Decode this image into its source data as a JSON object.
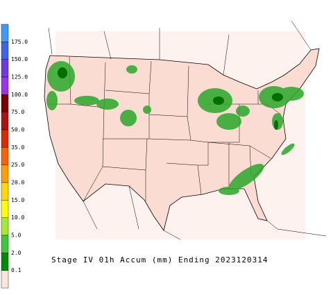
{
  "legend": {
    "labels": [
      "175.0",
      "150.0",
      "125.0",
      "100.0",
      "75.0",
      "50.0",
      "35.0",
      "25.0",
      "20.0",
      "15.0",
      "10.0",
      "5.0",
      "2.0",
      "0.1"
    ],
    "colors": [
      "#3d9bff",
      "#3c64e6",
      "#6e3ce0",
      "#9a32f0",
      "#7a0000",
      "#b01010",
      "#e02800",
      "#ff6000",
      "#ffa000",
      "#ffd800",
      "#ffff00",
      "#a8e832",
      "#3cc83c",
      "#008c00",
      "#fbe4dc"
    ]
  },
  "title": "Stage IV 01h Accum (mm) Ending 2023120314"
}
